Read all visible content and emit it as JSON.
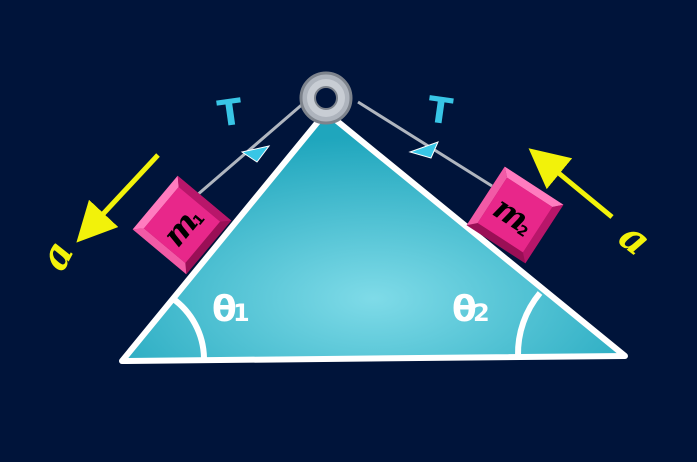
{
  "diagram": {
    "title": "Two blocks on a double incline connected over a pulley",
    "tension_left": "T",
    "tension_right": "T",
    "accel_left": "a",
    "accel_right": "a",
    "angle_left": {
      "symbol": "θ",
      "sub": "1"
    },
    "angle_right": {
      "symbol": "θ",
      "sub": "2"
    },
    "mass_left": {
      "symbol": "m",
      "sub": "1"
    },
    "mass_right": {
      "symbol": "m",
      "sub": "2"
    },
    "colors": {
      "background": "#00143a",
      "incline_fill_center": "#7fdbe8",
      "incline_fill_edge": "#1fa6bd",
      "outline": "#ffffff",
      "block_fill": "#e8278a",
      "block_light": "#ff7cbf",
      "block_dark": "#9a0f56",
      "rope": "#b0b6bf",
      "tension_arrow": "#38c6e6",
      "accel_arrow": "#f2f20a",
      "pulley": "#aeb4bd"
    }
  }
}
